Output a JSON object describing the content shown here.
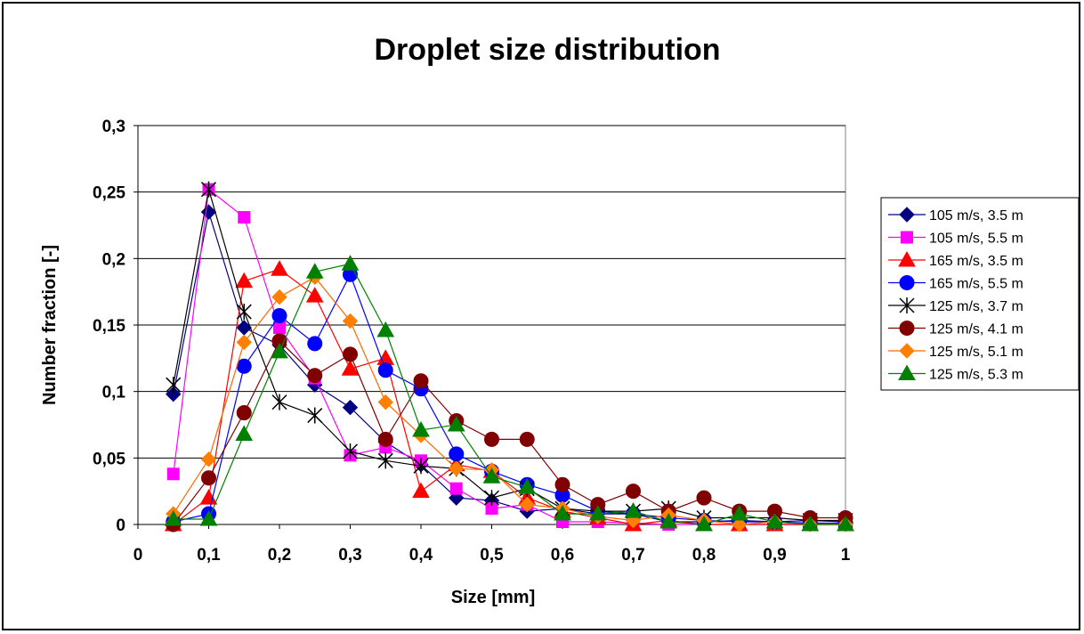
{
  "chart_data": {
    "type": "line",
    "title": "Droplet size distribution",
    "xlabel": "Size [mm]",
    "ylabel": "Number fraction [-]",
    "xlim": [
      0,
      1
    ],
    "ylim": [
      0,
      0.3
    ],
    "x_ticks": [
      "0",
      "0,1",
      "0,2",
      "0,3",
      "0,4",
      "0,5",
      "0,6",
      "0,7",
      "0,8",
      "0,9",
      "1"
    ],
    "y_ticks": [
      "0",
      "0,05",
      "0,1",
      "0,15",
      "0,2",
      "0,25",
      "0,3"
    ],
    "grid": "horizontal major gridlines",
    "legend_position": "right",
    "x": [
      0.05,
      0.1,
      0.15,
      0.2,
      0.25,
      0.3,
      0.35,
      0.4,
      0.45,
      0.5,
      0.55,
      0.6,
      0.65,
      0.7,
      0.75,
      0.8,
      0.85,
      0.9,
      0.95,
      1.0
    ],
    "series": [
      {
        "name": "105 m/s, 3.5 m",
        "color": "#000080",
        "marker": "diamond",
        "marker_color": "#000080",
        "values": [
          0.098,
          0.235,
          0.148,
          0.135,
          0.105,
          0.088,
          0.062,
          0.045,
          0.02,
          0.018,
          0.01,
          0.012,
          0.008,
          0.008,
          0.002,
          0.002,
          0.003,
          0.002,
          0.003,
          0.002
        ]
      },
      {
        "name": "105 m/s, 5.5 m",
        "color": "#ff00ff",
        "marker": "square",
        "marker_color": "#ff00ff",
        "values": [
          0.038,
          0.252,
          0.231,
          0.148,
          0.11,
          0.052,
          0.058,
          0.048,
          0.027,
          0.012,
          0.015,
          0.002,
          0.002,
          0.001,
          0.0,
          0.0,
          0.0,
          0.0,
          0.0,
          0.0
        ]
      },
      {
        "name": "165 m/s, 3.5 m",
        "color": "#ff0000",
        "marker": "triangle",
        "marker_color": "#ff0000",
        "values": [
          0.0,
          0.02,
          0.183,
          0.192,
          0.172,
          0.117,
          0.125,
          0.025,
          0.045,
          0.04,
          0.02,
          0.01,
          0.005,
          0.0,
          0.003,
          0.0,
          0.0,
          0.0,
          0.0,
          0.0
        ]
      },
      {
        "name": "165 m/s, 5.5 m",
        "color": "#0000ff",
        "marker": "circle",
        "marker_color": "#0000ff",
        "values": [
          0.002,
          0.008,
          0.119,
          0.157,
          0.136,
          0.188,
          0.116,
          0.102,
          0.053,
          0.04,
          0.03,
          0.022,
          0.01,
          0.008,
          0.005,
          0.003,
          0.002,
          0.002,
          0.001,
          0.001
        ]
      },
      {
        "name": "125 m/s, 3.7 m",
        "color": "#000000",
        "marker": "asterisk",
        "marker_color": "#000000",
        "values": [
          0.105,
          0.252,
          0.16,
          0.092,
          0.082,
          0.055,
          0.048,
          0.044,
          0.042,
          0.02,
          0.027,
          0.012,
          0.01,
          0.01,
          0.012,
          0.005,
          0.005,
          0.005,
          0.003,
          0.003
        ]
      },
      {
        "name": "125 m/s, 4.1 m",
        "color": "#800000",
        "marker": "circle",
        "marker_color": "#800000",
        "values": [
          0.0,
          0.035,
          0.084,
          0.138,
          0.112,
          0.128,
          0.064,
          0.108,
          0.078,
          0.064,
          0.064,
          0.03,
          0.015,
          0.025,
          0.01,
          0.02,
          0.01,
          0.01,
          0.005,
          0.005
        ]
      },
      {
        "name": "125 m/s, 5.1 m",
        "color": "#ff6600",
        "marker": "diamond",
        "marker_color": "#ff8000",
        "values": [
          0.008,
          0.049,
          0.137,
          0.171,
          0.186,
          0.153,
          0.092,
          0.067,
          0.042,
          0.041,
          0.015,
          0.012,
          0.006,
          0.003,
          0.007,
          0.003,
          0.0,
          0.002,
          0.0,
          0.0
        ]
      },
      {
        "name": "125 m/s, 5.3 m",
        "color": "#008000",
        "marker": "triangle",
        "marker_color": "#008000",
        "values": [
          0.004,
          0.004,
          0.068,
          0.13,
          0.19,
          0.196,
          0.146,
          0.071,
          0.075,
          0.036,
          0.028,
          0.008,
          0.008,
          0.01,
          0.002,
          0.0,
          0.008,
          0.002,
          0.0,
          0.0
        ]
      }
    ]
  }
}
